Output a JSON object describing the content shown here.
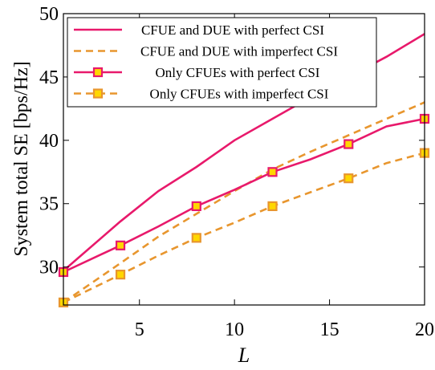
{
  "chart_data": {
    "type": "line",
    "xlabel": "L",
    "ylabel": "System total SE [bps/Hz]",
    "xlim": [
      1,
      20
    ],
    "ylim": [
      27,
      50
    ],
    "xticks": [
      5,
      10,
      15,
      20
    ],
    "yticks": [
      30,
      35,
      40,
      45,
      50
    ],
    "grid": false,
    "legend_position": "top-left",
    "series": [
      {
        "name": "CFUE and DUE with perfect CSI",
        "color": "#e8196b",
        "dash": "solid",
        "marker": "none",
        "x": [
          1,
          4,
          6,
          8,
          10,
          12,
          14,
          16,
          18,
          20
        ],
        "y": [
          29.7,
          33.6,
          36.0,
          37.9,
          40.0,
          41.7,
          43.4,
          45.0,
          46.6,
          48.4
        ]
      },
      {
        "name": "CFUE and DUE with imperfect CSI",
        "color": "#e8962e",
        "dash": "dashed",
        "marker": "none",
        "x": [
          1,
          4,
          6,
          8,
          10,
          12,
          14,
          16,
          18,
          20
        ],
        "y": [
          27.2,
          30.3,
          32.4,
          34.2,
          36.0,
          37.7,
          39.1,
          40.4,
          41.7,
          43.0
        ]
      },
      {
        "name": "Only CFUEs with perfect CSI",
        "color": "#e8196b",
        "dash": "solid",
        "marker": "square",
        "x": [
          1,
          4,
          6,
          8,
          10,
          12,
          14,
          16,
          18,
          20
        ],
        "y": [
          29.6,
          31.7,
          33.2,
          34.8,
          36.1,
          37.5,
          38.5,
          39.7,
          41.1,
          41.7
        ],
        "marker_indices": [
          0,
          1,
          3,
          5,
          7,
          9
        ]
      },
      {
        "name": "Only CFUEs with imperfect CSI",
        "color": "#e8962e",
        "dash": "dashed",
        "marker": "square",
        "x": [
          1,
          4,
          6,
          8,
          10,
          12,
          14,
          16,
          18,
          20
        ],
        "y": [
          27.2,
          29.4,
          30.9,
          32.3,
          33.5,
          34.8,
          35.9,
          37.0,
          38.2,
          39.0
        ],
        "marker_indices": [
          0,
          1,
          3,
          5,
          7,
          9
        ]
      }
    ]
  },
  "colors": {
    "marker_fill": "#ffd700",
    "axis": "#000000"
  }
}
